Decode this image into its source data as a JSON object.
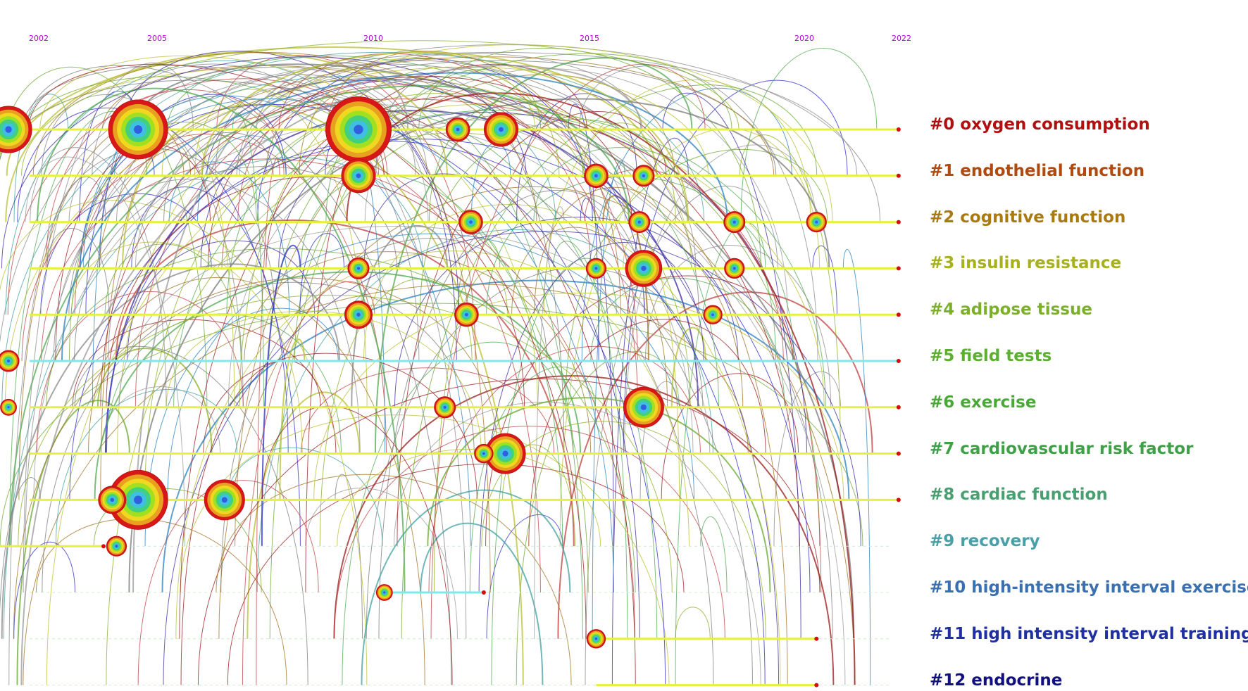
{
  "years": [
    "2002",
    "2005",
    "2010",
    "2015",
    "2020",
    "2022"
  ],
  "clusters": [
    {
      "label": "#0 oxygen consumption",
      "color": "#b01010"
    },
    {
      "label": "#1 endothelial function",
      "color": "#b04a10"
    },
    {
      "label": "#2 cognitive function",
      "color": "#a87a10"
    },
    {
      "label": "#3 insulin resistance",
      "color": "#a6b020"
    },
    {
      "label": "#4 adipose tissue",
      "color": "#7cb02a"
    },
    {
      "label": "#5 field tests",
      "color": "#5cb030"
    },
    {
      "label": "#6 exercise",
      "color": "#4aa838"
    },
    {
      "label": "#7 cardiovascular risk factor",
      "color": "#40a048"
    },
    {
      "label": "#8 cardiac function",
      "color": "#48a070"
    },
    {
      "label": "#9 recovery",
      "color": "#4aa0a8"
    },
    {
      "label": "#10 high-intensity interval exercise",
      "color": "#3a70b0"
    },
    {
      "label": "#11 high intensity interval training",
      "color": "#2030a0"
    },
    {
      "label": "#12 endocrine",
      "color": "#101080"
    }
  ],
  "nodes": [
    {
      "row": 0,
      "year": 2001.3,
      "size": 3
    },
    {
      "row": 0,
      "year": 2004.3,
      "size": 4
    },
    {
      "row": 0,
      "year": 2009.4,
      "size": 4.5
    },
    {
      "row": 0,
      "year": 2011.7,
      "size": 1.2
    },
    {
      "row": 0,
      "year": 2012.7,
      "size": 2
    },
    {
      "row": 1,
      "year": 2009.4,
      "size": 2
    },
    {
      "row": 1,
      "year": 2014.9,
      "size": 1.2
    },
    {
      "row": 1,
      "year": 2016.0,
      "size": 1
    },
    {
      "row": 2,
      "year": 2012.0,
      "size": 1.2
    },
    {
      "row": 2,
      "year": 2015.9,
      "size": 1
    },
    {
      "row": 2,
      "year": 2018.1,
      "size": 1
    },
    {
      "row": 2,
      "year": 2020.0,
      "size": 0.9
    },
    {
      "row": 3,
      "year": 2009.4,
      "size": 1
    },
    {
      "row": 3,
      "year": 2014.9,
      "size": 0.9
    },
    {
      "row": 3,
      "year": 2016.0,
      "size": 2.2
    },
    {
      "row": 3,
      "year": 2018.1,
      "size": 0.9
    },
    {
      "row": 4,
      "year": 2009.4,
      "size": 1.5
    },
    {
      "row": 4,
      "year": 2011.9,
      "size": 1.2
    },
    {
      "row": 4,
      "year": 2017.6,
      "size": 0.8
    },
    {
      "row": 5,
      "year": 2001.3,
      "size": 1
    },
    {
      "row": 6,
      "year": 2001.3,
      "size": 0.6
    },
    {
      "row": 6,
      "year": 2011.4,
      "size": 1
    },
    {
      "row": 6,
      "year": 2016.0,
      "size": 2.5
    },
    {
      "row": 7,
      "year": 2012.8,
      "size": 2.5
    },
    {
      "row": 7,
      "year": 2012.3,
      "size": 0.8
    },
    {
      "row": 8,
      "year": 2004.3,
      "size": 4
    },
    {
      "row": 8,
      "year": 2003.7,
      "size": 1.5
    },
    {
      "row": 8,
      "year": 2006.3,
      "size": 2.5
    },
    {
      "row": 9,
      "year": 2003.8,
      "size": 0.9
    },
    {
      "row": 10,
      "year": 2010.0,
      "size": 0.6
    },
    {
      "row": 11,
      "year": 2014.9,
      "size": 0.8
    }
  ]
}
